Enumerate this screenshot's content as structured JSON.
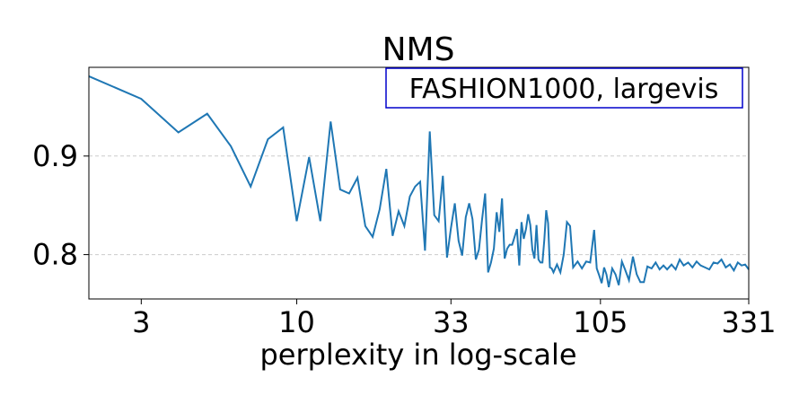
{
  "chart_data": {
    "type": "line",
    "title": "NMS",
    "xlabel": "perplexity in log-scale",
    "ylabel": "",
    "x_scale": "log",
    "xlim": [
      2,
      331
    ],
    "ylim": [
      0.755,
      0.99
    ],
    "x_ticks": [
      3,
      10,
      33,
      105,
      331
    ],
    "x_tick_labels": [
      "3",
      "10",
      "33",
      "105",
      "331"
    ],
    "y_ticks": [
      0.8,
      0.9
    ],
    "y_tick_labels": [
      "0.8",
      "0.9"
    ],
    "grid": "y-dashed",
    "legend_placement": "top-right",
    "legend_text": "FASHION1000, largevis",
    "line_color": "#1f77b4",
    "x": [
      2,
      3,
      4,
      5,
      6,
      7,
      8,
      9,
      10,
      11,
      12,
      13,
      14,
      15,
      16,
      17,
      18,
      19,
      20,
      21,
      22,
      23,
      24,
      25,
      26,
      27,
      28,
      29,
      30,
      31,
      32,
      33,
      34,
      35,
      36,
      37,
      38,
      39,
      40,
      41,
      42,
      43,
      44,
      45,
      46,
      47,
      48,
      49,
      50,
      51,
      52,
      53,
      54,
      55,
      56,
      57,
      58,
      59,
      60,
      61,
      62,
      63,
      64,
      65,
      66,
      67,
      68,
      69,
      70,
      71,
      72,
      73,
      74,
      75,
      76,
      77,
      78,
      79,
      80,
      81,
      82,
      83,
      84,
      85,
      86,
      87,
      88,
      89,
      90,
      91,
      92,
      93,
      94,
      95,
      96,
      97,
      98,
      99,
      100,
      101,
      102,
      103,
      104,
      105,
      106,
      107,
      108,
      109,
      110,
      111,
      112,
      113,
      114,
      115,
      116,
      117,
      118,
      119,
      120,
      121,
      122,
      123,
      124,
      125,
      126,
      127,
      128,
      129,
      130,
      131,
      132,
      133,
      134,
      135,
      136,
      137,
      138,
      139,
      140,
      141,
      142,
      143,
      144,
      145,
      146,
      147,
      148,
      149,
      150,
      151,
      152,
      153,
      154,
      155,
      156,
      157,
      158,
      159,
      160,
      161,
      162,
      163,
      164,
      165,
      166,
      167,
      168,
      169,
      170,
      171,
      172,
      173,
      174,
      175,
      176,
      177,
      178,
      179,
      180,
      181,
      182,
      183,
      184,
      185,
      186,
      187,
      188,
      189,
      190,
      191,
      192,
      193,
      194,
      195,
      196,
      197,
      198,
      199,
      200,
      201,
      202,
      203,
      204,
      205,
      206,
      207,
      208,
      209,
      210,
      211,
      212,
      213,
      214,
      215,
      216,
      217,
      218,
      219,
      220,
      221,
      222,
      223,
      224,
      225,
      226,
      227,
      228,
      229,
      230,
      231,
      232,
      233,
      234,
      235,
      236,
      237,
      238,
      239,
      240,
      241,
      242,
      243,
      244,
      245,
      246,
      247,
      248,
      249,
      250,
      251,
      252,
      253,
      254,
      255,
      256,
      257,
      258,
      259,
      260,
      261,
      262,
      263,
      264,
      265,
      266,
      267,
      268,
      269,
      270,
      271,
      272,
      273,
      274,
      275,
      276,
      277,
      278,
      279,
      280,
      281,
      282,
      283,
      284,
      285,
      286,
      287,
      288,
      289,
      290,
      291,
      292,
      293,
      294,
      295,
      296,
      297,
      298,
      299,
      300,
      301,
      302,
      303,
      304,
      305,
      306,
      307,
      308,
      309,
      310,
      311,
      312,
      313,
      314,
      315,
      316,
      317,
      318,
      319,
      320,
      321,
      322,
      323,
      324,
      325,
      326,
      327,
      328,
      329,
      330,
      331
    ],
    "y_anchors": [
      [
        2,
        0.981
      ],
      [
        3,
        0.958
      ],
      [
        4,
        0.924
      ],
      [
        5,
        0.943
      ],
      [
        6,
        0.91
      ],
      [
        7,
        0.869
      ],
      [
        8,
        0.917
      ],
      [
        9,
        0.929
      ],
      [
        10,
        0.834
      ],
      [
        11,
        0.899
      ],
      [
        12,
        0.834
      ],
      [
        13,
        0.935
      ],
      [
        14,
        0.866
      ],
      [
        15,
        0.862
      ],
      [
        16,
        0.878
      ],
      [
        17,
        0.829
      ],
      [
        18,
        0.818
      ],
      [
        19,
        0.846
      ],
      [
        20,
        0.887
      ],
      [
        21,
        0.819
      ],
      [
        22,
        0.844
      ],
      [
        23,
        0.829
      ],
      [
        24,
        0.859
      ],
      [
        25,
        0.869
      ],
      [
        26,
        0.874
      ],
      [
        27,
        0.804
      ],
      [
        28,
        0.925
      ],
      [
        29,
        0.84
      ],
      [
        30,
        0.834
      ],
      [
        31,
        0.88
      ],
      [
        32,
        0.797
      ],
      [
        33,
        0.827
      ],
      [
        34,
        0.852
      ],
      [
        35,
        0.814
      ],
      [
        36,
        0.799
      ],
      [
        37,
        0.838
      ],
      [
        38,
        0.852
      ],
      [
        39,
        0.836
      ],
      [
        40,
        0.795
      ],
      [
        41,
        0.805
      ],
      [
        42,
        0.836
      ],
      [
        43,
        0.862
      ],
      [
        44,
        0.782
      ],
      [
        45,
        0.792
      ],
      [
        46,
        0.806
      ],
      [
        47,
        0.843
      ],
      [
        48,
        0.823
      ],
      [
        49,
        0.857
      ],
      [
        50,
        0.796
      ],
      [
        51,
        0.806
      ],
      [
        52,
        0.81
      ],
      [
        53,
        0.81
      ],
      [
        54,
        0.818
      ],
      [
        55,
        0.826
      ],
      [
        56,
        0.789
      ],
      [
        57,
        0.833
      ],
      [
        58,
        0.816
      ],
      [
        59,
        0.826
      ],
      [
        60,
        0.841
      ],
      [
        61,
        0.83
      ],
      [
        62,
        0.805
      ],
      [
        63,
        0.796
      ],
      [
        64,
        0.83
      ],
      [
        65,
        0.795
      ],
      [
        66,
        0.792
      ],
      [
        67,
        0.792
      ],
      [
        68,
        0.815
      ],
      [
        69,
        0.845
      ],
      [
        70,
        0.832
      ],
      [
        71,
        0.787
      ],
      [
        72,
        0.786
      ],
      [
        73,
        0.782
      ],
      [
        75,
        0.79
      ],
      [
        77,
        0.782
      ],
      [
        79,
        0.8
      ],
      [
        81,
        0.833
      ],
      [
        83,
        0.829
      ],
      [
        85,
        0.787
      ],
      [
        88,
        0.793
      ],
      [
        91,
        0.786
      ],
      [
        94,
        0.793
      ],
      [
        97,
        0.792
      ],
      [
        100,
        0.825
      ],
      [
        102,
        0.786
      ],
      [
        104,
        0.779
      ],
      [
        106,
        0.771
      ],
      [
        108,
        0.787
      ],
      [
        110,
        0.78
      ],
      [
        112,
        0.767
      ],
      [
        115,
        0.786
      ],
      [
        118,
        0.78
      ],
      [
        121,
        0.769
      ],
      [
        124,
        0.793
      ],
      [
        127,
        0.785
      ],
      [
        131,
        0.774
      ],
      [
        135,
        0.798
      ],
      [
        139,
        0.78
      ],
      [
        143,
        0.772
      ],
      [
        147,
        0.772
      ],
      [
        151,
        0.788
      ],
      [
        156,
        0.786
      ],
      [
        161,
        0.792
      ],
      [
        166,
        0.785
      ],
      [
        171,
        0.789
      ],
      [
        176,
        0.785
      ],
      [
        182,
        0.79
      ],
      [
        188,
        0.785
      ],
      [
        194,
        0.795
      ],
      [
        200,
        0.789
      ],
      [
        207,
        0.792
      ],
      [
        214,
        0.787
      ],
      [
        221,
        0.793
      ],
      [
        228,
        0.789
      ],
      [
        236,
        0.787
      ],
      [
        244,
        0.785
      ],
      [
        252,
        0.792
      ],
      [
        260,
        0.791
      ],
      [
        268,
        0.795
      ],
      [
        277,
        0.787
      ],
      [
        286,
        0.79
      ],
      [
        295,
        0.784
      ],
      [
        304,
        0.792
      ],
      [
        313,
        0.789
      ],
      [
        322,
        0.79
      ],
      [
        331,
        0.785
      ]
    ]
  }
}
